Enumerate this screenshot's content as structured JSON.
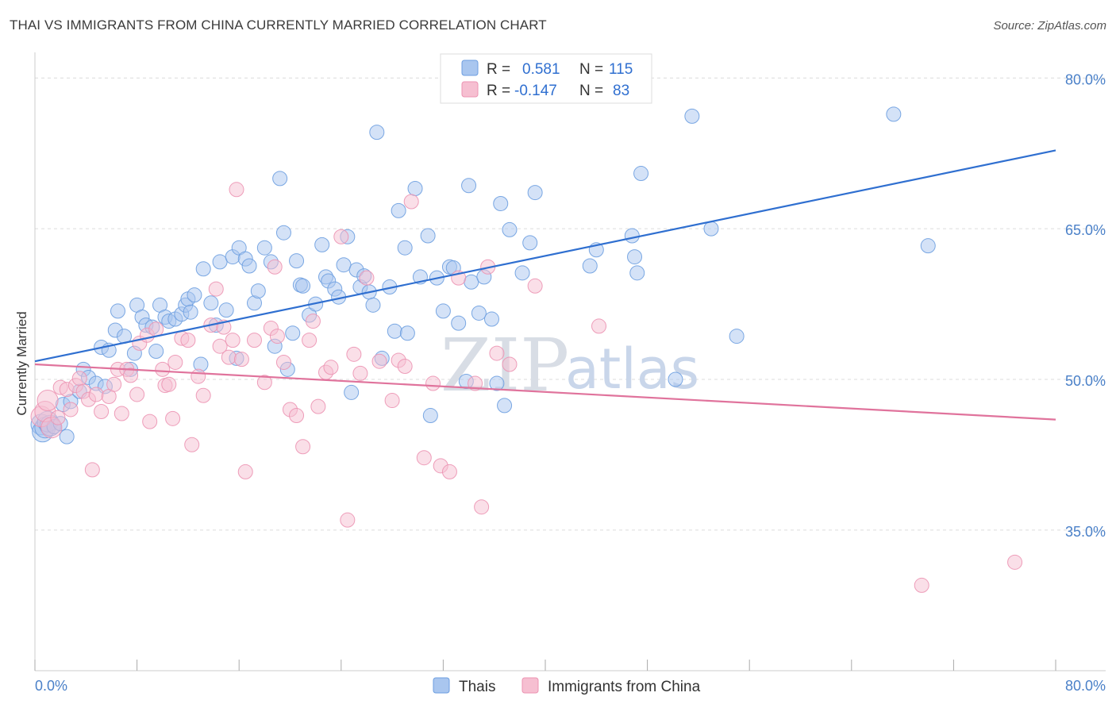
{
  "title": "THAI VS IMMIGRANTS FROM CHINA CURRENTLY MARRIED CORRELATION CHART",
  "source": "Source: ZipAtlas.com",
  "watermark": {
    "zip": "ZIP",
    "atlas": "atlas"
  },
  "colors": {
    "thai_fill": "#a9c6ef",
    "thai_stroke": "#6d9ee0",
    "thai_line": "#2f6fd0",
    "china_fill": "#f6bfd1",
    "china_stroke": "#ec93b2",
    "china_line": "#e0739c",
    "axis_label": "#4a80c8",
    "grid": "#dcdcdc"
  },
  "legend": {
    "rows": [
      {
        "r_label": "R =",
        "r_value": "0.581",
        "n_label": "N =",
        "n_value": "115"
      },
      {
        "r_label": "R =",
        "r_value": "-0.147",
        "n_label": "N =",
        "n_value": "83"
      }
    ]
  },
  "bottom_legend": {
    "thai": "Thais",
    "china": "Immigrants from China"
  },
  "chart_data": {
    "type": "scatter",
    "xlabel": "",
    "ylabel": "Currently Married",
    "xlim": [
      0,
      80
    ],
    "ylim": [
      21,
      82
    ],
    "x_tick_labels": [
      "0.0%",
      "80.0%"
    ],
    "y_ticks": [
      35,
      50,
      65,
      80
    ],
    "y_tick_labels": [
      "35.0%",
      "50.0%",
      "65.0%",
      "80.0%"
    ],
    "grid": true,
    "legend_position": "top-center",
    "series": [
      {
        "name": "Thais",
        "R": 0.581,
        "N": 115,
        "trend": [
          [
            0,
            51.8
          ],
          [
            80,
            72.8
          ]
        ],
        "points": [
          [
            0.5,
            45.5
          ],
          [
            0.6,
            44.8
          ],
          [
            0.8,
            45.2
          ],
          [
            1.0,
            45.8
          ],
          [
            1.2,
            45.4
          ],
          [
            1.5,
            45.3
          ],
          [
            2.0,
            45.6
          ],
          [
            2.2,
            47.5
          ],
          [
            2.5,
            44.3
          ],
          [
            2.8,
            47.8
          ],
          [
            3.5,
            48.8
          ],
          [
            3.8,
            51.0
          ],
          [
            4.2,
            50.2
          ],
          [
            4.8,
            49.6
          ],
          [
            5.2,
            53.2
          ],
          [
            5.5,
            49.3
          ],
          [
            5.8,
            52.9
          ],
          [
            6.3,
            54.9
          ],
          [
            6.5,
            56.8
          ],
          [
            7.0,
            54.3
          ],
          [
            7.5,
            51.0
          ],
          [
            7.8,
            52.6
          ],
          [
            8.0,
            57.4
          ],
          [
            8.4,
            56.2
          ],
          [
            8.7,
            55.4
          ],
          [
            9.2,
            55.2
          ],
          [
            9.5,
            52.8
          ],
          [
            9.8,
            57.4
          ],
          [
            10.2,
            56.2
          ],
          [
            10.5,
            55.8
          ],
          [
            11.0,
            56.0
          ],
          [
            11.5,
            56.5
          ],
          [
            11.8,
            57.4
          ],
          [
            12.0,
            58.0
          ],
          [
            12.2,
            56.7
          ],
          [
            12.5,
            58.4
          ],
          [
            13.0,
            51.5
          ],
          [
            13.2,
            61.0
          ],
          [
            13.8,
            57.6
          ],
          [
            14.2,
            55.4
          ],
          [
            14.5,
            61.7
          ],
          [
            15.0,
            56.9
          ],
          [
            15.5,
            62.2
          ],
          [
            15.8,
            52.1
          ],
          [
            16.0,
            63.1
          ],
          [
            16.5,
            62.0
          ],
          [
            16.8,
            61.3
          ],
          [
            17.2,
            57.6
          ],
          [
            17.5,
            58.8
          ],
          [
            18.0,
            63.1
          ],
          [
            18.5,
            61.7
          ],
          [
            18.8,
            53.3
          ],
          [
            19.2,
            70.0
          ],
          [
            19.5,
            64.6
          ],
          [
            19.8,
            51.0
          ],
          [
            20.2,
            54.6
          ],
          [
            20.5,
            61.8
          ],
          [
            20.8,
            59.4
          ],
          [
            21.0,
            59.3
          ],
          [
            21.5,
            56.4
          ],
          [
            22.0,
            57.5
          ],
          [
            22.5,
            63.4
          ],
          [
            22.8,
            60.2
          ],
          [
            23.0,
            59.8
          ],
          [
            23.5,
            59.0
          ],
          [
            23.8,
            58.2
          ],
          [
            24.2,
            61.4
          ],
          [
            24.5,
            64.2
          ],
          [
            24.8,
            48.7
          ],
          [
            25.2,
            60.9
          ],
          [
            25.5,
            59.2
          ],
          [
            25.8,
            60.3
          ],
          [
            26.2,
            58.7
          ],
          [
            26.5,
            57.4
          ],
          [
            26.8,
            74.6
          ],
          [
            27.2,
            52.1
          ],
          [
            27.8,
            59.2
          ],
          [
            28.2,
            54.8
          ],
          [
            28.5,
            66.8
          ],
          [
            29.0,
            63.1
          ],
          [
            29.2,
            54.6
          ],
          [
            29.8,
            69.0
          ],
          [
            30.2,
            60.2
          ],
          [
            30.8,
            64.3
          ],
          [
            31.0,
            46.4
          ],
          [
            31.5,
            60.1
          ],
          [
            32.0,
            56.8
          ],
          [
            32.5,
            61.2
          ],
          [
            32.8,
            61.1
          ],
          [
            33.2,
            55.6
          ],
          [
            33.8,
            49.8
          ],
          [
            34.0,
            69.3
          ],
          [
            34.2,
            59.7
          ],
          [
            34.8,
            56.6
          ],
          [
            35.2,
            60.2
          ],
          [
            35.8,
            56.0
          ],
          [
            36.2,
            49.6
          ],
          [
            36.5,
            67.5
          ],
          [
            36.8,
            47.4
          ],
          [
            37.2,
            64.9
          ],
          [
            38.2,
            60.6
          ],
          [
            38.8,
            63.6
          ],
          [
            39.2,
            68.6
          ],
          [
            43.5,
            61.3
          ],
          [
            44.0,
            62.9
          ],
          [
            46.8,
            64.3
          ],
          [
            47.0,
            62.2
          ],
          [
            47.2,
            60.6
          ],
          [
            47.5,
            70.5
          ],
          [
            50.2,
            50.0
          ],
          [
            51.5,
            76.2
          ],
          [
            53.0,
            65.0
          ],
          [
            55.0,
            54.3
          ],
          [
            67.3,
            76.4
          ],
          [
            70.0,
            63.3
          ]
        ]
      },
      {
        "name": "Immigrants from China",
        "R": -0.147,
        "N": 83,
        "trend": [
          [
            0,
            51.5
          ],
          [
            80,
            46.0
          ]
        ],
        "points": [
          [
            0.5,
            46.3
          ],
          [
            0.8,
            46.8
          ],
          [
            1.0,
            47.9
          ],
          [
            1.3,
            45.2
          ],
          [
            1.8,
            46.2
          ],
          [
            2.0,
            49.2
          ],
          [
            2.5,
            49.0
          ],
          [
            2.8,
            47.0
          ],
          [
            3.2,
            49.4
          ],
          [
            3.5,
            50.1
          ],
          [
            3.8,
            48.8
          ],
          [
            4.2,
            48.0
          ],
          [
            4.5,
            41.0
          ],
          [
            4.8,
            48.5
          ],
          [
            5.2,
            46.8
          ],
          [
            5.8,
            48.3
          ],
          [
            6.2,
            49.5
          ],
          [
            6.5,
            51.0
          ],
          [
            6.8,
            46.6
          ],
          [
            7.2,
            51.0
          ],
          [
            7.5,
            50.4
          ],
          [
            8.0,
            48.5
          ],
          [
            8.2,
            53.6
          ],
          [
            8.8,
            54.4
          ],
          [
            9.0,
            45.8
          ],
          [
            9.5,
            55.0
          ],
          [
            10.0,
            51.0
          ],
          [
            10.2,
            49.4
          ],
          [
            10.5,
            49.5
          ],
          [
            10.8,
            46.1
          ],
          [
            11.0,
            51.7
          ],
          [
            11.5,
            54.1
          ],
          [
            12.0,
            53.9
          ],
          [
            12.3,
            43.5
          ],
          [
            12.8,
            50.3
          ],
          [
            13.2,
            48.4
          ],
          [
            13.8,
            55.4
          ],
          [
            14.2,
            59.0
          ],
          [
            14.5,
            53.3
          ],
          [
            14.8,
            55.2
          ],
          [
            15.2,
            52.2
          ],
          [
            15.5,
            53.9
          ],
          [
            15.8,
            68.9
          ],
          [
            16.2,
            52.0
          ],
          [
            16.5,
            40.8
          ],
          [
            17.2,
            53.9
          ],
          [
            18.0,
            49.7
          ],
          [
            18.5,
            55.1
          ],
          [
            18.8,
            61.2
          ],
          [
            19.0,
            54.3
          ],
          [
            19.5,
            51.7
          ],
          [
            20.0,
            47.0
          ],
          [
            20.5,
            46.4
          ],
          [
            21.0,
            43.3
          ],
          [
            21.5,
            53.9
          ],
          [
            21.8,
            55.8
          ],
          [
            22.2,
            47.3
          ],
          [
            22.8,
            50.7
          ],
          [
            23.2,
            51.2
          ],
          [
            24.0,
            64.2
          ],
          [
            24.5,
            36.0
          ],
          [
            25.0,
            52.5
          ],
          [
            25.5,
            50.6
          ],
          [
            26.0,
            60.1
          ],
          [
            27.0,
            51.8
          ],
          [
            28.0,
            47.9
          ],
          [
            28.5,
            51.9
          ],
          [
            29.0,
            51.3
          ],
          [
            29.5,
            67.7
          ],
          [
            30.5,
            42.2
          ],
          [
            31.2,
            49.6
          ],
          [
            31.8,
            41.4
          ],
          [
            32.5,
            40.8
          ],
          [
            33.2,
            60.1
          ],
          [
            34.5,
            49.6
          ],
          [
            35.0,
            37.3
          ],
          [
            35.5,
            61.2
          ],
          [
            36.2,
            52.6
          ],
          [
            37.2,
            51.5
          ],
          [
            39.2,
            59.3
          ],
          [
            44.2,
            55.3
          ],
          [
            69.5,
            29.5
          ],
          [
            76.8,
            31.8
          ]
        ]
      }
    ]
  }
}
